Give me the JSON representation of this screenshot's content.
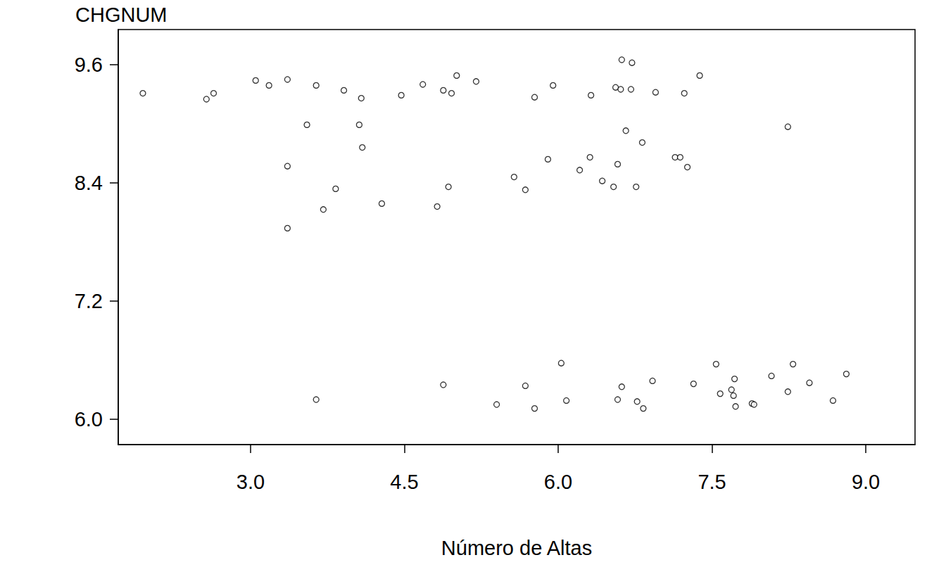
{
  "chart_data": {
    "type": "scatter",
    "xlabel": "Número de Altas",
    "ylabel": "CHGNUM",
    "color": "#000000",
    "marker": "circle_open",
    "grid": false,
    "xlim": [
      1.71,
      9.48
    ],
    "ylim": [
      5.743,
      9.957
    ],
    "xticks": [
      {
        "value": 3,
        "label": "3.0"
      },
      {
        "value": 4.5,
        "label": "4.5"
      },
      {
        "value": 6,
        "label": "6.0"
      },
      {
        "value": 7.5,
        "label": "7.5"
      },
      {
        "value": 9,
        "label": "9.0"
      }
    ],
    "yticks": [
      {
        "value": 6,
        "label": "6.0"
      },
      {
        "value": 7.2,
        "label": "7.2"
      },
      {
        "value": 8.4,
        "label": "8.4"
      },
      {
        "value": 9.6,
        "label": "9.6"
      }
    ],
    "x": [
      1.95,
      2.57,
      2.64,
      3.05,
      3.18,
      3.36,
      3.64,
      3.91,
      4.08,
      4.47,
      4.68,
      4.88,
      4.96,
      5.01,
      5.2,
      5.77,
      5.95,
      6.32,
      6.56,
      6.61,
      6.62,
      6.71,
      6.72,
      6.95,
      7.23,
      7.38,
      3.55,
      4.06,
      4.09,
      3.36,
      3.83,
      3.71,
      3.36,
      4.28,
      4.82,
      4.93,
      5.57,
      5.68,
      5.9,
      6.21,
      6.31,
      6.43,
      6.54,
      6.58,
      6.66,
      6.76,
      6.82,
      7.14,
      7.19,
      7.26,
      8.24,
      3.64,
      4.88,
      5.4,
      5.68,
      5.77,
      6.03,
      6.08,
      6.58,
      6.62,
      6.77,
      6.83,
      6.92,
      7.32,
      7.54,
      7.58,
      7.69,
      7.72,
      7.71,
      7.73,
      7.89,
      7.91,
      8.08,
      8.24,
      8.29,
      8.45,
      8.68,
      8.81
    ],
    "values": [
      9.31,
      9.25,
      9.31,
      9.44,
      9.39,
      9.45,
      9.39,
      9.34,
      9.26,
      9.29,
      9.4,
      9.34,
      9.31,
      9.49,
      9.43,
      9.27,
      9.39,
      9.29,
      9.37,
      9.35,
      9.65,
      9.35,
      9.62,
      9.32,
      9.31,
      9.49,
      8.99,
      8.99,
      8.76,
      8.57,
      8.34,
      8.13,
      7.94,
      8.19,
      8.16,
      8.36,
      8.46,
      8.33,
      8.64,
      8.53,
      8.66,
      8.42,
      8.36,
      8.59,
      8.93,
      8.36,
      8.81,
      8.66,
      8.66,
      8.56,
      8.97,
      6.2,
      6.35,
      6.15,
      6.34,
      6.11,
      6.57,
      6.19,
      6.2,
      6.33,
      6.18,
      6.11,
      6.39,
      6.36,
      6.56,
      6.26,
      6.3,
      6.41,
      6.24,
      6.13,
      6.16,
      6.15,
      6.44,
      6.28,
      6.56,
      6.37,
      6.19,
      6.46
    ]
  }
}
